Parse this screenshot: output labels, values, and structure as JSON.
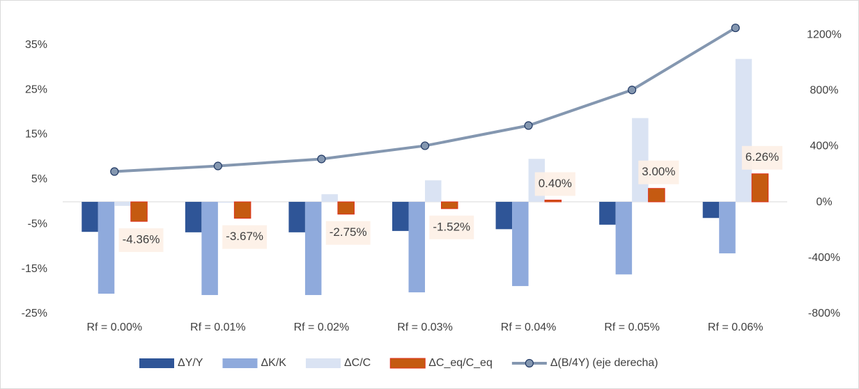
{
  "chart_data": {
    "type": "bar",
    "categories": [
      "Rf = 0.00%",
      "Rf = 0.01%",
      "Rf = 0.02%",
      "Rf = 0.03%",
      "Rf = 0.04%",
      "Rf = 0.05%",
      "Rf = 0.06%"
    ],
    "ylim": [
      -25,
      43.5
    ],
    "yticks": [
      {
        "value": -25,
        "label": "-25%"
      },
      {
        "value": -15,
        "label": "-15%"
      },
      {
        "value": -5,
        "label": "-5%"
      },
      {
        "value": 5,
        "label": "5%"
      },
      {
        "value": 15,
        "label": "15%"
      },
      {
        "value": 25,
        "label": "25%"
      },
      {
        "value": 35,
        "label": "35%"
      }
    ],
    "y2lim": [
      -800,
      1400
    ],
    "y2ticks": [
      {
        "value": -800,
        "label": "-800%"
      },
      {
        "value": -400,
        "label": "-400%"
      },
      {
        "value": 0,
        "label": "0%"
      },
      {
        "value": 400,
        "label": "400%"
      },
      {
        "value": 800,
        "label": "800%"
      },
      {
        "value": 1200,
        "label": "1200%"
      }
    ],
    "grid": false,
    "legend": "bottom",
    "series": [
      {
        "name": "ΔY/Y",
        "color": "#2f5597",
        "values": [
          -6.7,
          -6.8,
          -6.8,
          -6.5,
          -6.1,
          -5.1,
          -3.6
        ]
      },
      {
        "name": "ΔK/K",
        "color": "#8faadc",
        "values": [
          -20.5,
          -20.8,
          -20.8,
          -20.2,
          -18.8,
          -16.2,
          -11.5
        ]
      },
      {
        "name": "ΔC/C",
        "color": "#dae3f3",
        "values": [
          -0.9,
          -0.2,
          1.7,
          4.8,
          9.6,
          18.7,
          31.9
        ]
      },
      {
        "name": "ΔC_eq/C_eq",
        "color": "#c55a11",
        "values": [
          -4.36,
          -3.67,
          -2.75,
          -1.52,
          0.4,
          3.0,
          6.26
        ],
        "value_labels": [
          "-4.36%",
          "-3.67%",
          "-2.75%",
          "-1.52%",
          "0.40%",
          "3.00%",
          "6.26%"
        ]
      },
      {
        "name": "Δ(B/4Y) (eje derecha)",
        "type": "line",
        "axis": "y2",
        "color": "#8497b0",
        "values": [
          220,
          260,
          310,
          405,
          550,
          805,
          1250
        ]
      }
    ]
  }
}
